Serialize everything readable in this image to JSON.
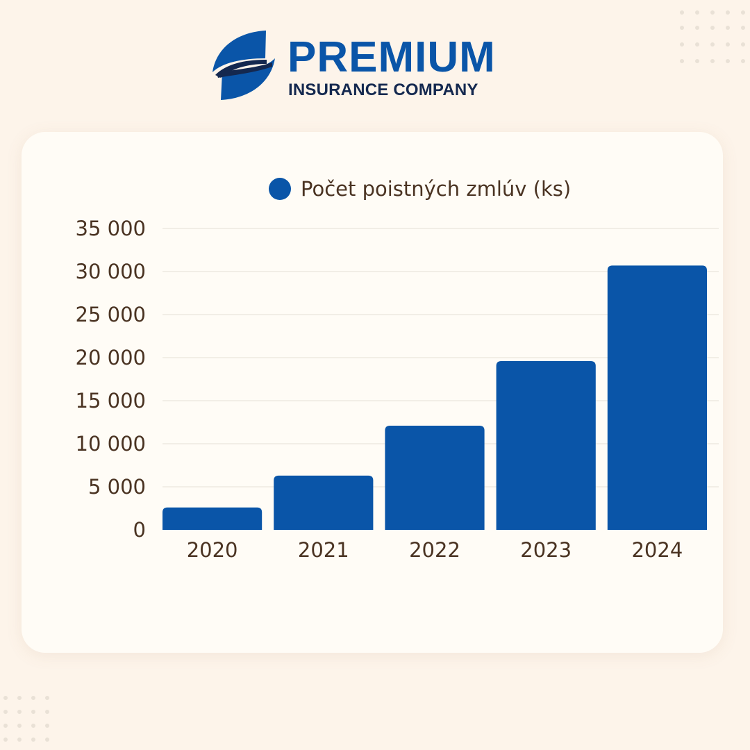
{
  "brand": {
    "name": "PREMIUM",
    "tagline": "INSURANCE COMPANY",
    "logo_icon": "premium-swoosh-logo-icon",
    "primary_color": "#0a55a8",
    "dark_color": "#14284f"
  },
  "chart_data": {
    "type": "bar",
    "categories": [
      "2020",
      "2021",
      "2022",
      "2023",
      "2024"
    ],
    "series": [
      {
        "name": "Počet poistných zmlúv (ks)",
        "values": [
          2600,
          6300,
          12100,
          19600,
          30700
        ],
        "color": "#0a55a8"
      }
    ],
    "title": "",
    "xlabel": "",
    "ylabel": "",
    "ylim": [
      0,
      35000
    ],
    "yticks": [
      0,
      5000,
      10000,
      15000,
      20000,
      25000,
      30000,
      35000
    ],
    "ytick_labels": [
      "0",
      "5 000",
      "10 000",
      "15 000",
      "20 000",
      "25 000",
      "30 000",
      "35 000"
    ],
    "grid": true,
    "legend_position": "top-center",
    "text_color": "#4a3322",
    "grid_color": "#e6dfd6"
  }
}
